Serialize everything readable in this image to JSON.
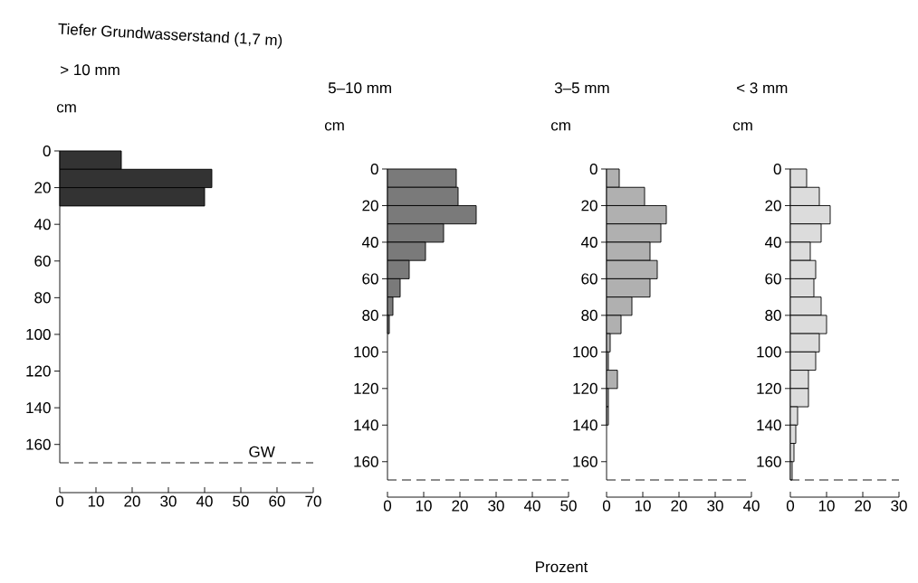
{
  "chart_data": [
    {
      "type": "histogram",
      "orientation": "horizontal",
      "title": "Tiefer Grundwasserstand (1,7 m)",
      "subtitle": "> 10 mm",
      "ylabel": "cm",
      "bins": [
        0,
        10,
        20,
        30
      ],
      "values": [
        17,
        42,
        40
      ],
      "color": "#333333",
      "xlim": [
        0,
        70
      ],
      "xticks": [
        0,
        10,
        20,
        30,
        40,
        50,
        60,
        70
      ],
      "ylim": [
        170,
        0
      ],
      "yticks": [
        0,
        20,
        40,
        60,
        80,
        100,
        120,
        140,
        160
      ],
      "ref_lines": [
        {
          "axis": "y",
          "value": 170,
          "label": "GW",
          "line_style": "dashed"
        }
      ]
    },
    {
      "type": "histogram",
      "orientation": "horizontal",
      "subtitle": "5–10 mm",
      "ylabel": "cm",
      "bins": [
        0,
        10,
        20,
        30,
        40,
        50,
        60,
        70,
        80,
        90
      ],
      "values": [
        19,
        19.5,
        24.5,
        15.5,
        10.5,
        6,
        3.5,
        1.5,
        0.5
      ],
      "color": "#7a7a7a",
      "xlim": [
        0,
        50
      ],
      "xticks": [
        0,
        10,
        20,
        30,
        40,
        50
      ],
      "ylim": [
        170,
        0
      ],
      "yticks": [
        0,
        20,
        40,
        60,
        80,
        100,
        120,
        140,
        160
      ],
      "ref_lines": [
        {
          "axis": "y",
          "value": 170,
          "line_style": "dashed"
        }
      ]
    },
    {
      "type": "histogram",
      "orientation": "horizontal",
      "subtitle": "3–5 mm",
      "ylabel": "cm",
      "xlabel": "Prozent",
      "bins": [
        0,
        10,
        20,
        30,
        40,
        50,
        60,
        70,
        80,
        90,
        100,
        110,
        120,
        130,
        140
      ],
      "values": [
        3.5,
        10.5,
        16.5,
        15,
        12,
        14,
        12,
        7,
        4,
        1,
        0.5,
        3,
        0.5,
        0.5
      ],
      "color": "#b0b0b0",
      "xlim": [
        0,
        40
      ],
      "xticks": [
        0,
        10,
        20,
        30,
        40
      ],
      "ylim": [
        170,
        0
      ],
      "yticks": [
        0,
        20,
        40,
        60,
        80,
        100,
        120,
        140,
        160
      ],
      "ref_lines": [
        {
          "axis": "y",
          "value": 170,
          "line_style": "dashed"
        }
      ]
    },
    {
      "type": "histogram",
      "orientation": "horizontal",
      "subtitle": "< 3 mm",
      "ylabel": "cm",
      "bins": [
        0,
        10,
        20,
        30,
        40,
        50,
        60,
        70,
        80,
        90,
        100,
        110,
        120,
        130,
        140,
        150,
        160,
        170
      ],
      "values": [
        4.5,
        8,
        11,
        8.5,
        5.5,
        7,
        6.5,
        8.5,
        10,
        8,
        7,
        5,
        5,
        2,
        1.5,
        1,
        0.5
      ],
      "color": "#dcdcdc",
      "xlim": [
        0,
        30
      ],
      "xticks": [
        0,
        10,
        20,
        30
      ],
      "ylim": [
        170,
        0
      ],
      "yticks": [
        0,
        20,
        40,
        60,
        80,
        100,
        120,
        140,
        160
      ],
      "ref_lines": [
        {
          "axis": "y",
          "value": 170,
          "line_style": "dashed"
        }
      ]
    }
  ]
}
